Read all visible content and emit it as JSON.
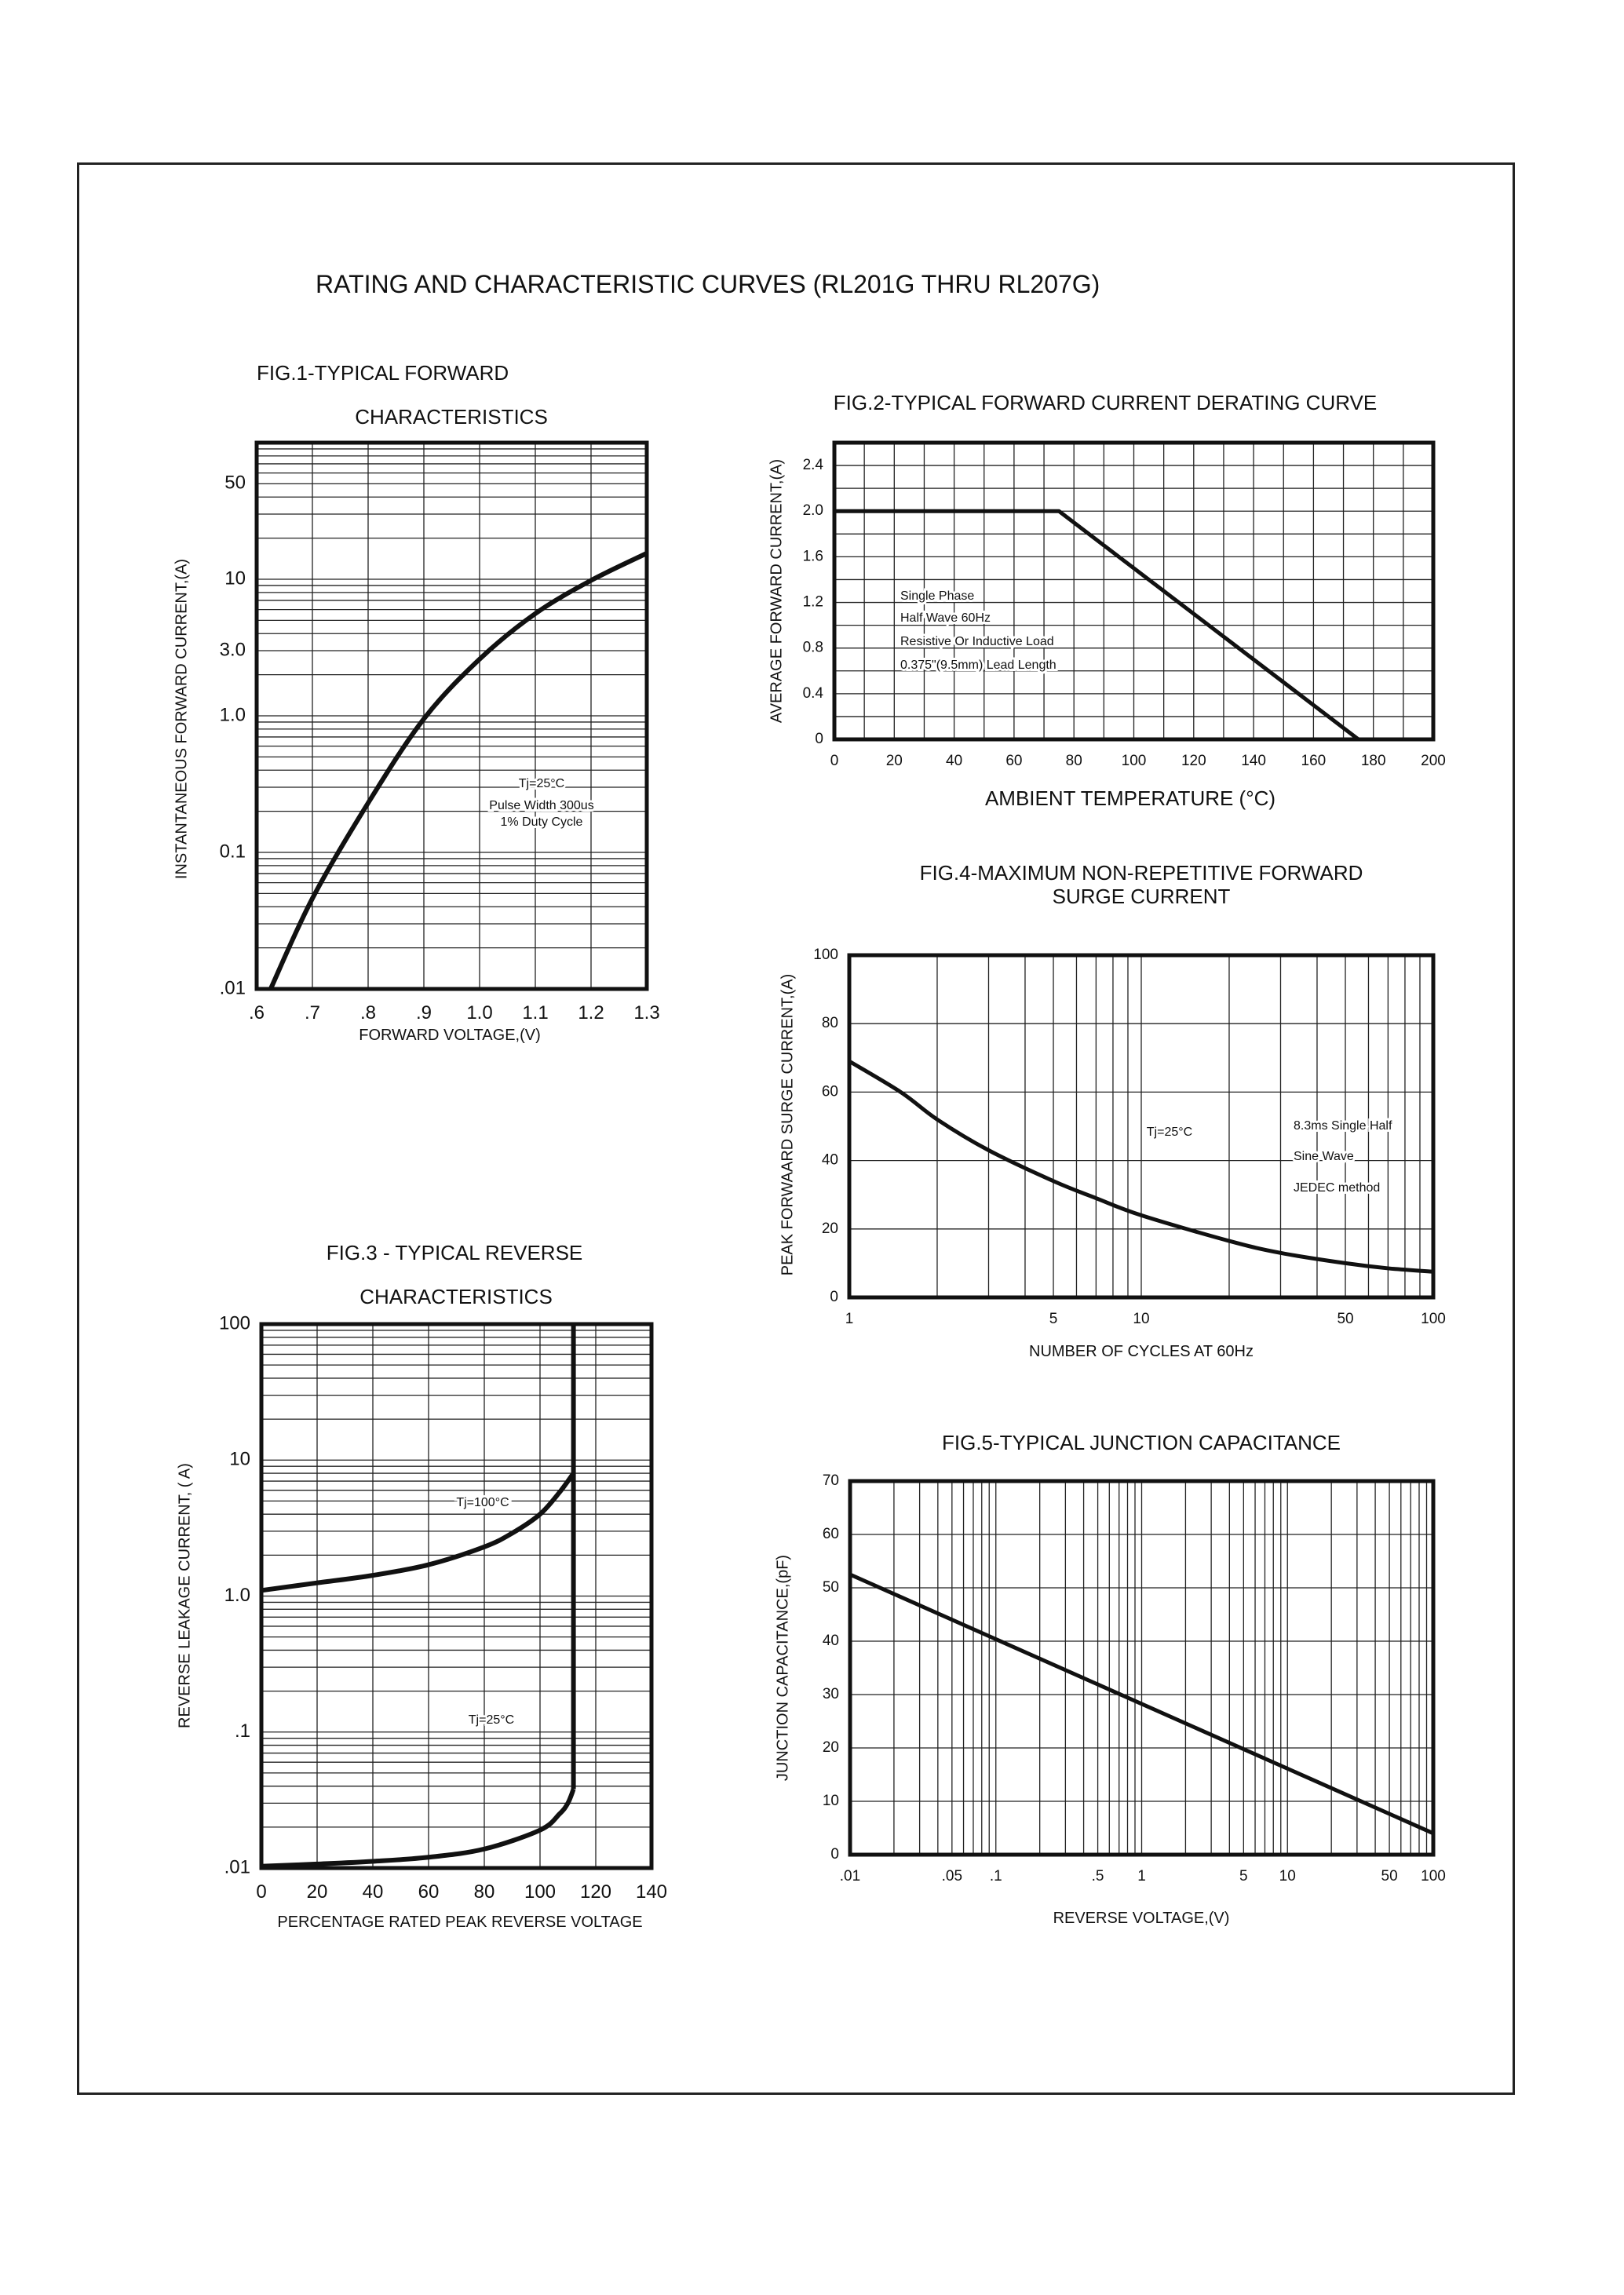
{
  "page": {
    "title": "RATING AND CHARACTERISTIC CURVES (RL201G THRU RL207G)"
  },
  "chart_data": [
    {
      "type": "line",
      "title_lines": [
        "FIG.1-TYPICAL FORWARD",
        "CHARACTERISTICS"
      ],
      "xlabel": "FORWARD VOLTAGE,(V)",
      "ylabel": "INSTANTANEOUS FORWARD CURRENT,(A)",
      "xscale": "linear",
      "yscale": "log",
      "xlim": [
        0.6,
        1.3
      ],
      "ylim": [
        0.01,
        100
      ],
      "x_grid_step": 0.1,
      "grid": true,
      "x_ticks": [
        {
          "value": 0.6,
          "label": ".6"
        },
        {
          "value": 0.7,
          "label": ".7"
        },
        {
          "value": 0.8,
          "label": ".8"
        },
        {
          "value": 0.9,
          "label": ".9"
        },
        {
          "value": 1.0,
          "label": "1.0"
        },
        {
          "value": 1.1,
          "label": "1.1"
        },
        {
          "value": 1.2,
          "label": "1.2"
        },
        {
          "value": 1.3,
          "label": "1.3"
        }
      ],
      "y_ticks": [
        {
          "value": 0.01,
          "label": ".01"
        },
        {
          "value": 0.1,
          "label": "0.1"
        },
        {
          "value": 1,
          "label": "1.0"
        },
        {
          "value": 3,
          "label": "3.0"
        },
        {
          "value": 10,
          "label": "10"
        },
        {
          "value": 50,
          "label": "50"
        }
      ],
      "annotations": [
        "Tj=25°C",
        "Pulse Width 300us",
        "1% Duty Cycle"
      ],
      "series": [
        {
          "smooth": true,
          "points": [
            [
              0.625,
              0.01
            ],
            [
              0.7,
              0.046
            ],
            [
              0.8,
              0.23
            ],
            [
              0.9,
              0.95
            ],
            [
              1.0,
              2.6
            ],
            [
              1.1,
              5.6
            ],
            [
              1.2,
              9.8
            ],
            [
              1.3,
              15.5
            ]
          ]
        }
      ]
    },
    {
      "type": "line",
      "title_lines": [
        "FIG.2-TYPICAL FORWARD CURRENT DERATING CURVE"
      ],
      "xlabel": "AMBIENT TEMPERATURE (°C)",
      "ylabel": "AVERAGE FORWARD CURRENT,(A)",
      "xscale": "linear",
      "yscale": "linear",
      "xlim": [
        0,
        200
      ],
      "ylim": [
        0,
        2.6
      ],
      "x_grid_step": 10,
      "y_grid_step": 0.2,
      "grid": true,
      "x_ticks": [
        {
          "value": 0,
          "label": "0"
        },
        {
          "value": 20,
          "label": "20"
        },
        {
          "value": 40,
          "label": "40"
        },
        {
          "value": 60,
          "label": "60"
        },
        {
          "value": 80,
          "label": "80"
        },
        {
          "value": 100,
          "label": "100"
        },
        {
          "value": 120,
          "label": "120"
        },
        {
          "value": 140,
          "label": "140"
        },
        {
          "value": 160,
          "label": "160"
        },
        {
          "value": 180,
          "label": "180"
        },
        {
          "value": 200,
          "label": "200"
        }
      ],
      "y_ticks": [
        {
          "value": 0,
          "label": "0"
        },
        {
          "value": 0.4,
          "label": "0.4"
        },
        {
          "value": 0.8,
          "label": "0.8"
        },
        {
          "value": 1.2,
          "label": "1.2"
        },
        {
          "value": 1.6,
          "label": "1.6"
        },
        {
          "value": 2.0,
          "label": "2.0"
        },
        {
          "value": 2.4,
          "label": "2.4"
        }
      ],
      "annotations": [
        "Single Phase",
        "Half Wave 60Hz",
        "Resistive Or Inductive Load",
        "0.375\"(9.5mm) Lead Length"
      ],
      "series": [
        {
          "smooth": false,
          "points": [
            [
              0,
              2.0
            ],
            [
              75,
              2.0
            ],
            [
              175,
              0
            ]
          ]
        }
      ]
    },
    {
      "type": "line",
      "title_lines": [
        "FIG.3 - TYPICAL REVERSE",
        "CHARACTERISTICS"
      ],
      "xlabel": "PERCENTAGE RATED PEAK REVERSE VOLTAGE",
      "ylabel": "REVERSE LEAKAGE CURRENT, ( A)",
      "xscale": "linear",
      "yscale": "log",
      "xlim": [
        0,
        140
      ],
      "ylim": [
        0.01,
        100
      ],
      "x_grid_step": 20,
      "grid": true,
      "x_ticks": [
        {
          "value": 0,
          "label": "0"
        },
        {
          "value": 20,
          "label": "20"
        },
        {
          "value": 40,
          "label": "40"
        },
        {
          "value": 60,
          "label": "60"
        },
        {
          "value": 80,
          "label": "80"
        },
        {
          "value": 100,
          "label": "100"
        },
        {
          "value": 120,
          "label": "120"
        },
        {
          "value": 140,
          "label": "140"
        }
      ],
      "y_ticks": [
        {
          "value": 0.01,
          "label": ".01"
        },
        {
          "value": 0.1,
          "label": ".1"
        },
        {
          "value": 1,
          "label": "1.0"
        },
        {
          "value": 10,
          "label": "10"
        },
        {
          "value": 100,
          "label": "100"
        }
      ],
      "annotations": [
        "Tj=100°C",
        "Tj=25°C"
      ],
      "series": [
        {
          "smooth": true,
          "points": [
            [
              0,
              1.1
            ],
            [
              20,
              1.25
            ],
            [
              40,
              1.42
            ],
            [
              60,
              1.7
            ],
            [
              80,
              2.3
            ],
            [
              90,
              2.9
            ],
            [
              100,
              4.0
            ],
            [
              107,
              5.8
            ],
            [
              112,
              8.0
            ]
          ]
        },
        {
          "smooth": true,
          "points": [
            [
              0,
              0.0103
            ],
            [
              20,
              0.0107
            ],
            [
              40,
              0.0112
            ],
            [
              60,
              0.012
            ],
            [
              80,
              0.0138
            ],
            [
              100,
              0.019
            ],
            [
              107,
              0.025
            ],
            [
              110,
              0.03
            ],
            [
              112,
              0.038
            ]
          ]
        },
        {
          "smooth": false,
          "points": [
            [
              112,
              0.038
            ],
            [
              112,
              100
            ]
          ]
        }
      ]
    },
    {
      "type": "line",
      "title_lines": [
        "FIG.4-MAXIMUM NON-REPETITIVE FORWARD",
        "SURGE CURRENT"
      ],
      "xlabel": "NUMBER OF CYCLES AT 60Hz",
      "ylabel": "PEAK FORWAARD SURGE CURRENT,(A)",
      "xscale": "log",
      "yscale": "linear",
      "xlim": [
        1,
        100
      ],
      "ylim": [
        0,
        100
      ],
      "y_grid_step": 20,
      "grid": true,
      "x_ticks": [
        {
          "value": 1,
          "label": "1"
        },
        {
          "value": 5,
          "label": "5"
        },
        {
          "value": 10,
          "label": "10"
        },
        {
          "value": 50,
          "label": "50"
        },
        {
          "value": 100,
          "label": "100"
        }
      ],
      "y_ticks": [
        {
          "value": 0,
          "label": "0"
        },
        {
          "value": 20,
          "label": "20"
        },
        {
          "value": 40,
          "label": "40"
        },
        {
          "value": 60,
          "label": "60"
        },
        {
          "value": 80,
          "label": "80"
        },
        {
          "value": 100,
          "label": "100"
        }
      ],
      "annotations": [
        "Tj=25°C",
        "8.3ms Single Half",
        "Sine Wave",
        "JEDEC method"
      ],
      "series": [
        {
          "smooth": true,
          "points": [
            [
              1,
              69
            ],
            [
              1.5,
              60
            ],
            [
              2,
              52
            ],
            [
              3,
              43
            ],
            [
              5,
              34
            ],
            [
              7,
              29
            ],
            [
              10,
              24
            ],
            [
              20,
              16.5
            ],
            [
              30,
              13
            ],
            [
              50,
              10
            ],
            [
              70,
              8.5
            ],
            [
              100,
              7.5
            ]
          ]
        }
      ]
    },
    {
      "type": "line",
      "title_lines": [
        "FIG.5-TYPICAL JUNCTION CAPACITANCE"
      ],
      "xlabel": "REVERSE VOLTAGE,(V)",
      "ylabel": "JUNCTION CAPACITANCE,(pF)",
      "xscale": "log",
      "yscale": "linear",
      "xlim": [
        0.01,
        100
      ],
      "ylim": [
        0,
        70
      ],
      "y_grid_step": 10,
      "grid": true,
      "x_ticks": [
        {
          "value": 0.01,
          "label": ".01"
        },
        {
          "value": 0.05,
          "label": ".05"
        },
        {
          "value": 0.1,
          "label": ".1"
        },
        {
          "value": 0.5,
          "label": ".5"
        },
        {
          "value": 1,
          "label": "1"
        },
        {
          "value": 5,
          "label": "5"
        },
        {
          "value": 10,
          "label": "10"
        },
        {
          "value": 50,
          "label": "50"
        },
        {
          "value": 100,
          "label": "100"
        }
      ],
      "y_ticks": [
        {
          "value": 0,
          "label": "0"
        },
        {
          "value": 10,
          "label": "10"
        },
        {
          "value": 20,
          "label": "20"
        },
        {
          "value": 30,
          "label": "30"
        },
        {
          "value": 40,
          "label": "40"
        },
        {
          "value": 50,
          "label": "50"
        },
        {
          "value": 60,
          "label": "60"
        },
        {
          "value": 70,
          "label": "70"
        }
      ],
      "annotations": [],
      "series": [
        {
          "smooth": false,
          "points": [
            [
              0.01,
              52.5
            ],
            [
              100,
              4
            ]
          ]
        }
      ]
    }
  ]
}
